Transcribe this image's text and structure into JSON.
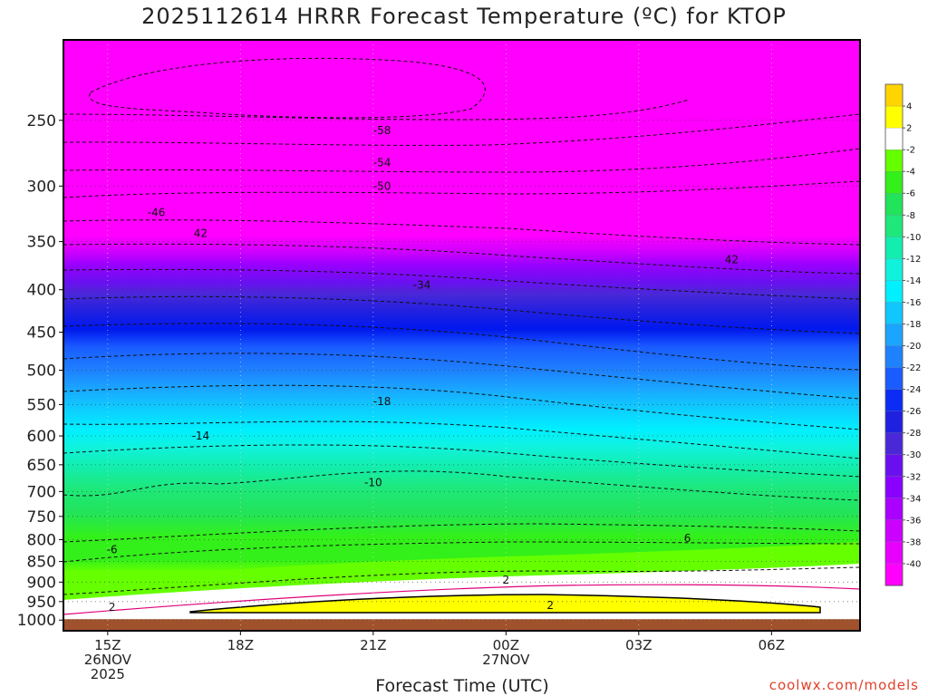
{
  "chart_data": {
    "type": "heatmap",
    "title": "2025112614 HRRR Forecast Temperature (ºC) for KTOP",
    "xlabel": "Forecast Time (UTC)",
    "ylabel": "",
    "x_ticks": [
      {
        "label": "15Z",
        "sub": "26NOV",
        "sub2": "2025",
        "hour": 15
      },
      {
        "label": "18Z",
        "sub": "",
        "sub2": "",
        "hour": 18
      },
      {
        "label": "21Z",
        "sub": "",
        "sub2": "",
        "hour": 21
      },
      {
        "label": "00Z",
        "sub": "27NOV",
        "sub2": "",
        "hour": 24
      },
      {
        "label": "03Z",
        "sub": "",
        "sub2": "",
        "hour": 27
      },
      {
        "label": "06Z",
        "sub": "",
        "sub2": "",
        "hour": 30
      }
    ],
    "xlim_hours": [
      14,
      32
    ],
    "y_ticks": [
      250,
      300,
      350,
      400,
      450,
      500,
      550,
      600,
      650,
      700,
      750,
      800,
      850,
      900,
      950,
      1000
    ],
    "ylim_hpa": [
      200,
      1030
    ],
    "y_scale": "log-pressure",
    "grid": true,
    "contour_labels": [
      {
        "text": "-58",
        "hour": 21.2,
        "p": 257
      },
      {
        "text": "-54",
        "hour": 21.2,
        "p": 281
      },
      {
        "text": "-50",
        "hour": 21.2,
        "p": 300
      },
      {
        "text": "-46",
        "hour": 16.1,
        "p": 323
      },
      {
        "text": "42",
        "hour": 17.1,
        "p": 342
      },
      {
        "text": "42",
        "hour": 29.1,
        "p": 368
      },
      {
        "text": "-34",
        "hour": 22.1,
        "p": 395
      },
      {
        "text": "-18",
        "hour": 21.2,
        "p": 545
      },
      {
        "text": "-14",
        "hour": 17.1,
        "p": 600
      },
      {
        "text": "-10",
        "hour": 21.0,
        "p": 683
      },
      {
        "text": "6",
        "hour": 28.1,
        "p": 797
      },
      {
        "text": "-6",
        "hour": 15.1,
        "p": 823
      },
      {
        "text": "2",
        "hour": 24.0,
        "p": 895
      },
      {
        "text": "2",
        "hour": 25.0,
        "p": 960
      },
      {
        "text": "2",
        "hour": 15.1,
        "p": 965
      }
    ],
    "colorbar": {
      "labels": [
        "4",
        "2",
        "-2",
        "-4",
        "-6",
        "-8",
        "-10",
        "-12",
        "-14",
        "-16",
        "-18",
        "-20",
        "-22",
        "-24",
        "-26",
        "-28",
        "-30",
        "-32",
        "-34",
        "-36",
        "-38",
        "-40"
      ],
      "colors": [
        "#ffd400",
        "#ffff00",
        "#ffffff",
        "#66ff00",
        "#33f01a",
        "#22e45a",
        "#1ee87a",
        "#12eeb0",
        "#10f2dc",
        "#00f0ff",
        "#10c8ff",
        "#1aa5ff",
        "#1e82ff",
        "#1a5cff",
        "#0a2cf5",
        "#2020e0",
        "#4a28d8",
        "#6a10f0",
        "#8a00ff",
        "#aa00ff",
        "#cc00ff",
        "#e800ff",
        "#ff00ff"
      ]
    },
    "ground_color": "#a0522d",
    "background_color": "#ff00ff"
  },
  "footer": {
    "credit": "coolwx.com/models"
  }
}
